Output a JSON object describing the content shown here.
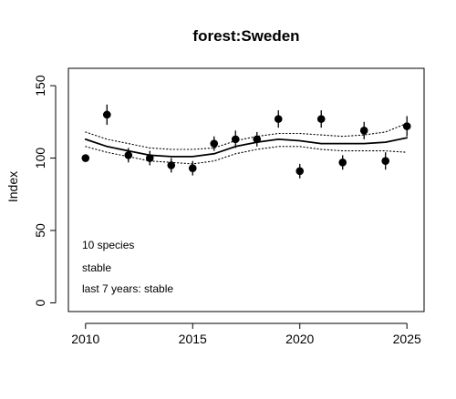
{
  "chart_data": {
    "type": "line",
    "title": "forest:Sweden",
    "xlabel": "",
    "ylabel": "Index",
    "xlim": [
      2009.2,
      2025.8
    ],
    "ylim": [
      -6,
      162
    ],
    "x_ticks": [
      2010,
      2015,
      2020,
      2025
    ],
    "y_ticks": [
      0,
      50,
      100,
      150
    ],
    "grid": false,
    "series": [
      {
        "style": "points-with-error-bars",
        "x": [
          2010,
          2011,
          2012,
          2013,
          2014,
          2015,
          2016,
          2017,
          2018,
          2019,
          2020,
          2021,
          2022,
          2023,
          2024,
          2025
        ],
        "y": [
          100,
          130,
          102,
          100,
          95,
          93,
          110,
          113,
          113,
          127,
          91,
          127,
          97,
          119,
          98,
          122
        ],
        "lower": [
          100,
          123,
          97,
          95,
          90,
          88,
          105,
          107,
          108,
          121,
          86,
          121,
          92,
          113,
          92,
          115
        ],
        "upper": [
          100,
          137,
          107,
          105,
          100,
          98,
          115,
          119,
          118,
          133,
          96,
          133,
          102,
          125,
          104,
          129
        ]
      },
      {
        "style": "trend-solid",
        "x": [
          2010,
          2011,
          2012,
          2013,
          2014,
          2015,
          2016,
          2017,
          2018,
          2019,
          2020,
          2021,
          2022,
          2023,
          2024,
          2025
        ],
        "y": [
          113,
          108,
          105,
          102,
          101,
          101,
          103,
          108,
          111,
          113,
          112,
          110,
          110,
          110,
          111,
          114
        ]
      },
      {
        "style": "trend-upper-dotted",
        "x": [
          2010,
          2011,
          2012,
          2013,
          2014,
          2015,
          2016,
          2017,
          2018,
          2019,
          2020,
          2021,
          2022,
          2023,
          2024,
          2025
        ],
        "y": [
          118,
          113,
          110,
          107,
          106,
          106,
          107,
          112,
          115,
          117,
          117,
          116,
          115,
          116,
          118,
          124
        ]
      },
      {
        "style": "trend-lower-dotted",
        "x": [
          2010,
          2011,
          2012,
          2013,
          2014,
          2015,
          2016,
          2017,
          2018,
          2019,
          2020,
          2021,
          2022,
          2023,
          2024,
          2025
        ],
        "y": [
          108,
          104,
          101,
          98,
          97,
          96,
          98,
          103,
          106,
          108,
          108,
          106,
          105,
          105,
          105,
          104
        ]
      }
    ],
    "annotations": [
      "10 species",
      "stable",
      "last 7 years: stable"
    ]
  }
}
